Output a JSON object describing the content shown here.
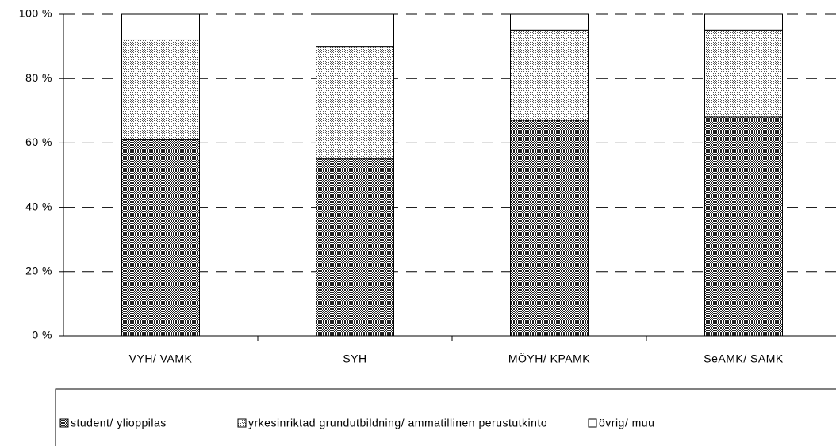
{
  "chart_data": {
    "type": "stacked-bar",
    "categories": [
      "VYH/ VAMK",
      "SYH",
      "MÖYH/ KPAMK",
      "SeAMK/ SAMK"
    ],
    "series": [
      {
        "name": "student/ ylioppilas",
        "color": "#6e6e6e",
        "values": [
          61,
          55,
          67,
          68
        ]
      },
      {
        "name": "yrkesinriktad grundutbildning/ ammatillinen perustutkinto",
        "color": "#cfcfcf",
        "values": [
          31,
          35,
          28,
          27
        ]
      },
      {
        "name": "övrig/ muu",
        "color": "#ffffff",
        "values": [
          8,
          10,
          5,
          5
        ]
      }
    ],
    "ylim": [
      0,
      100
    ],
    "yticks": [
      {
        "value": 0,
        "label": "0 %"
      },
      {
        "value": 20,
        "label": "20 %"
      },
      {
        "value": 40,
        "label": "40 %"
      },
      {
        "value": 60,
        "label": "60 %"
      },
      {
        "value": 80,
        "label": "80 %"
      },
      {
        "value": 100,
        "label": "100 %"
      }
    ],
    "grid": true,
    "legend": "bottom"
  }
}
